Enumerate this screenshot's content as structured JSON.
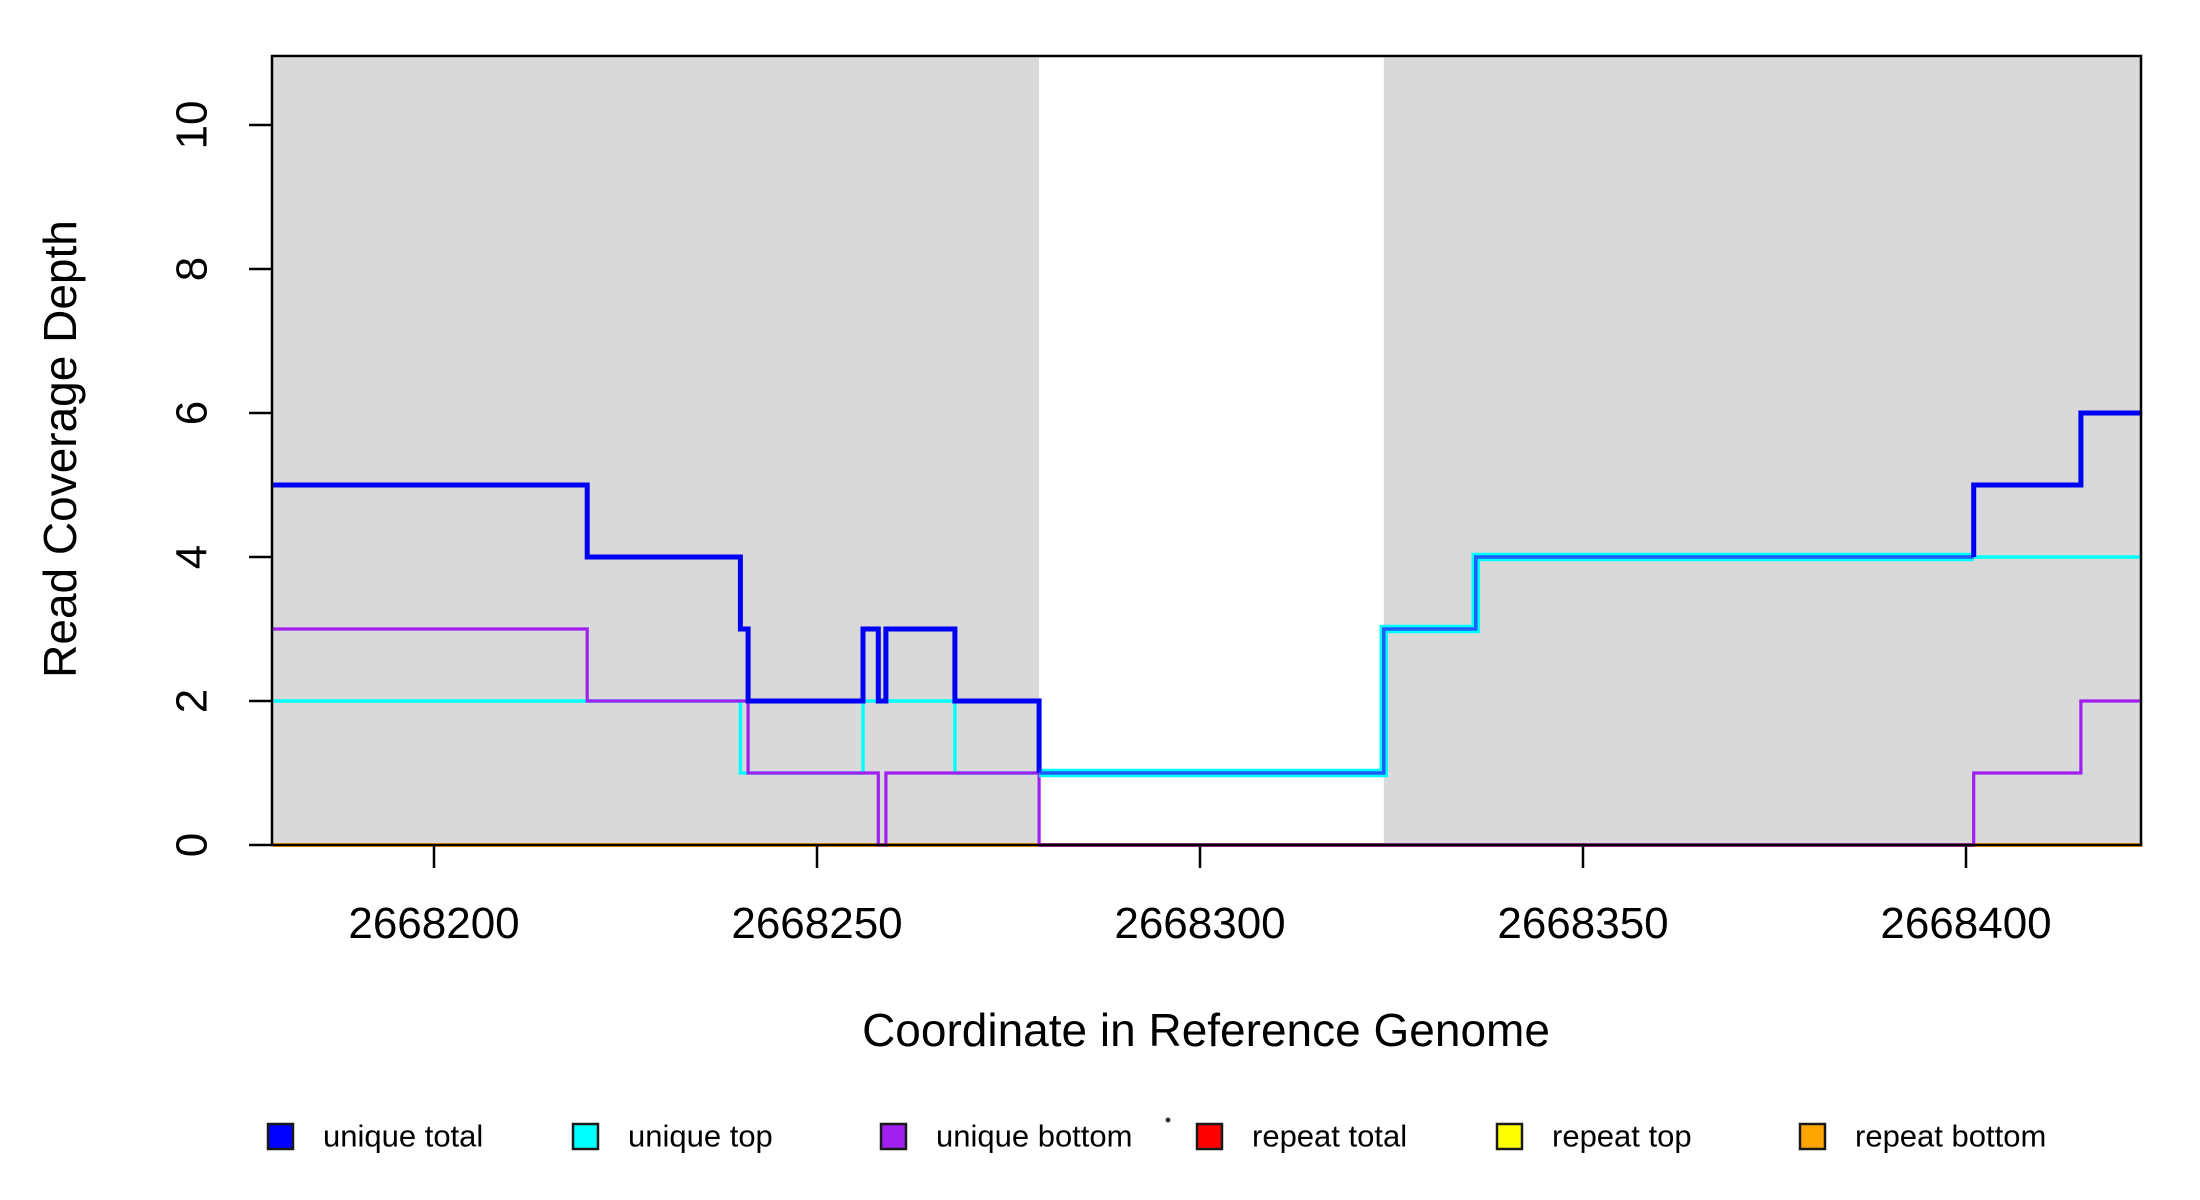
{
  "figure": {
    "background": "#ffffff",
    "shade_color": "#d9d9d9",
    "axis_color": "#000000"
  },
  "chart_data": {
    "type": "line",
    "subtype": "step-coverage",
    "title": "",
    "xlabel": "Coordinate in Reference Genome",
    "ylabel": "Read Coverage Depth",
    "xlim": [
      2668179,
      2668423
    ],
    "ylim": [
      0,
      11
    ],
    "grid": false,
    "legend_position": "bottom",
    "x_ticks": [
      2668200,
      2668250,
      2668300,
      2668350,
      2668400
    ],
    "y_ticks": [
      0,
      2,
      4,
      6,
      8,
      10
    ],
    "shaded_regions": [
      {
        "from": 2668179,
        "to": 2668279
      },
      {
        "from": 2668324,
        "to": 2668423
      }
    ],
    "series": [
      {
        "name": "unique total",
        "color": "#0000ff",
        "steps": [
          [
            2668179,
            5
          ],
          [
            2668220,
            4
          ],
          [
            2668240,
            3
          ],
          [
            2668241,
            2
          ],
          [
            2668256,
            3
          ],
          [
            2668258,
            2
          ],
          [
            2668259,
            3
          ],
          [
            2668268,
            2
          ],
          [
            2668279,
            1
          ],
          [
            2668324,
            3
          ],
          [
            2668336,
            4
          ],
          [
            2668401,
            5
          ],
          [
            2668415,
            6
          ]
        ],
        "end": 2668423
      },
      {
        "name": "unique top",
        "color": "#00ffff",
        "steps": [
          [
            2668179,
            2
          ],
          [
            2668240,
            1
          ],
          [
            2668256,
            2
          ],
          [
            2668268,
            1
          ],
          [
            2668324,
            3
          ],
          [
            2668336,
            4
          ]
        ],
        "end": 2668423
      },
      {
        "name": "unique bottom",
        "color": "#a020f0",
        "steps": [
          [
            2668179,
            3
          ],
          [
            2668220,
            2
          ],
          [
            2668241,
            1
          ],
          [
            2668258,
            0
          ],
          [
            2668259,
            1
          ],
          [
            2668279,
            0
          ],
          [
            2668401,
            1
          ],
          [
            2668415,
            2
          ]
        ],
        "end": 2668423
      },
      {
        "name": "repeat total",
        "color": "#ff0000",
        "steps": [
          [
            2668179,
            0
          ]
        ],
        "end": 2668423
      },
      {
        "name": "repeat top",
        "color": "#ffff00",
        "steps": [
          [
            2668179,
            0
          ]
        ],
        "end": 2668423
      },
      {
        "name": "repeat bottom",
        "color": "#ffa500",
        "steps": [
          [
            2668179,
            0
          ]
        ],
        "end": 2668423
      }
    ],
    "render_segments": [
      {
        "id": "repeat-total-baseline",
        "color": "#c15454",
        "width": 4,
        "points": [
          [
            2668179,
            0
          ],
          [
            2668423,
            0
          ]
        ]
      },
      {
        "id": "repeat-bottom-left",
        "color": "#ffa500",
        "width": 4,
        "points": [
          [
            2668179,
            0
          ],
          [
            2668279,
            0
          ]
        ]
      },
      {
        "id": "repeat-bottom-right",
        "color": "#ffa500",
        "width": 4,
        "points": [
          [
            2668401,
            0
          ],
          [
            2668423,
            0
          ]
        ]
      },
      {
        "id": "unique-top-line",
        "color": "#00ffff",
        "width": 3.5,
        "points": [
          [
            2668179,
            2
          ],
          [
            2668240,
            2
          ],
          [
            2668240,
            1
          ],
          [
            2668256,
            1
          ],
          [
            2668256,
            2
          ],
          [
            2668268,
            2
          ],
          [
            2668268,
            1
          ],
          [
            2668324,
            1
          ],
          [
            2668324,
            3
          ],
          [
            2668336,
            3
          ],
          [
            2668336,
            4
          ],
          [
            2668423,
            4
          ]
        ]
      },
      {
        "id": "unique-bottom-line",
        "color": "#a020f0",
        "width": 3.2,
        "points": [
          [
            2668179,
            3
          ],
          [
            2668220,
            3
          ],
          [
            2668220,
            2
          ],
          [
            2668241,
            2
          ],
          [
            2668241,
            1
          ],
          [
            2668258,
            1
          ],
          [
            2668258,
            0
          ],
          [
            2668259,
            0
          ],
          [
            2668259,
            1
          ],
          [
            2668279,
            1
          ],
          [
            2668279,
            0
          ],
          [
            2668401,
            0
          ],
          [
            2668401,
            1
          ],
          [
            2668415,
            1
          ],
          [
            2668415,
            2
          ],
          [
            2668423,
            2
          ]
        ]
      },
      {
        "id": "overlap-cyan-fringe",
        "color": "#00ffff",
        "width": 8.5,
        "points": [
          [
            2668279,
            1
          ],
          [
            2668324,
            1
          ],
          [
            2668324,
            3
          ],
          [
            2668336,
            3
          ],
          [
            2668336,
            4
          ],
          [
            2668401,
            4
          ]
        ]
      },
      {
        "id": "unique-total-left",
        "color": "#0000f2",
        "width": 5,
        "points": [
          [
            2668179,
            5
          ],
          [
            2668220,
            5
          ],
          [
            2668220,
            4
          ],
          [
            2668240,
            4
          ],
          [
            2668240,
            3
          ],
          [
            2668241,
            3
          ],
          [
            2668241,
            2
          ],
          [
            2668256,
            2
          ],
          [
            2668256,
            3
          ],
          [
            2668258,
            3
          ],
          [
            2668258,
            2
          ],
          [
            2668259,
            2
          ],
          [
            2668259,
            3
          ],
          [
            2668268,
            3
          ],
          [
            2668268,
            2
          ],
          [
            2668279,
            2
          ],
          [
            2668279,
            1
          ]
        ]
      },
      {
        "id": "overlap-blue-core",
        "color": "#1e5cff",
        "width": 3.5,
        "points": [
          [
            2668279,
            1
          ],
          [
            2668324,
            1
          ],
          [
            2668324,
            3
          ],
          [
            2668336,
            3
          ],
          [
            2668336,
            4
          ],
          [
            2668401,
            4
          ]
        ]
      },
      {
        "id": "unique-total-right",
        "color": "#0000f2",
        "width": 5,
        "points": [
          [
            2668401,
            4
          ],
          [
            2668401,
            5
          ],
          [
            2668415,
            5
          ],
          [
            2668415,
            6
          ],
          [
            2668423,
            6
          ]
        ]
      }
    ]
  },
  "legend": {
    "items": [
      {
        "label": "unique total",
        "color": "#0000ff"
      },
      {
        "label": "unique top",
        "color": "#00ffff"
      },
      {
        "label": "unique bottom",
        "color": "#a020f0"
      },
      {
        "label": "repeat total",
        "color": "#ff0000"
      },
      {
        "label": "repeat top",
        "color": "#ffff00"
      },
      {
        "label": "repeat bottom",
        "color": "#ffa500"
      }
    ],
    "stray_mark": "."
  }
}
